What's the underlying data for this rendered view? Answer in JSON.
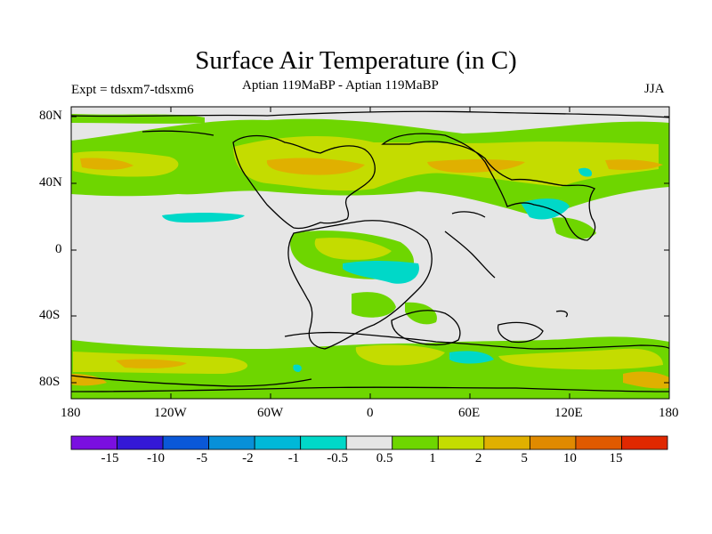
{
  "title": "Surface Air Temperature (in C)",
  "subtitle": "Aptian   119MaBP - Aptian   119MaBP",
  "experiment": "Expt = tdsxm7-tdsxm6",
  "season": "JJA",
  "latitude_labels": [
    "80N",
    "40N",
    "0",
    "40S",
    "80S"
  ],
  "longitude_labels": [
    "180",
    "120W",
    "60W",
    "0",
    "60E",
    "120E",
    "180"
  ],
  "colorbar": {
    "colors": [
      "#7a0fe0",
      "#3418d6",
      "#0a58d8",
      "#0890d8",
      "#00b8d8",
      "#00d8c8",
      "#e6e6e6",
      "#6ed600",
      "#c4dc00",
      "#e0b000",
      "#e08a00",
      "#e05a00",
      "#e02800"
    ],
    "labels": [
      "-15",
      "-10",
      "-5",
      "-2",
      "-1",
      "-0.5",
      "0.5",
      "1",
      "2",
      "5",
      "10",
      "15"
    ]
  },
  "map_colors": {
    "background": "#e6e6e6",
    "level_0_5_to_1": "#6ed600",
    "level_1_to_2": "#c4dc00",
    "level_2_to_5": "#e0b000",
    "level_neg1_to_neg0_5": "#00d8c8",
    "coastline": "#000000"
  }
}
